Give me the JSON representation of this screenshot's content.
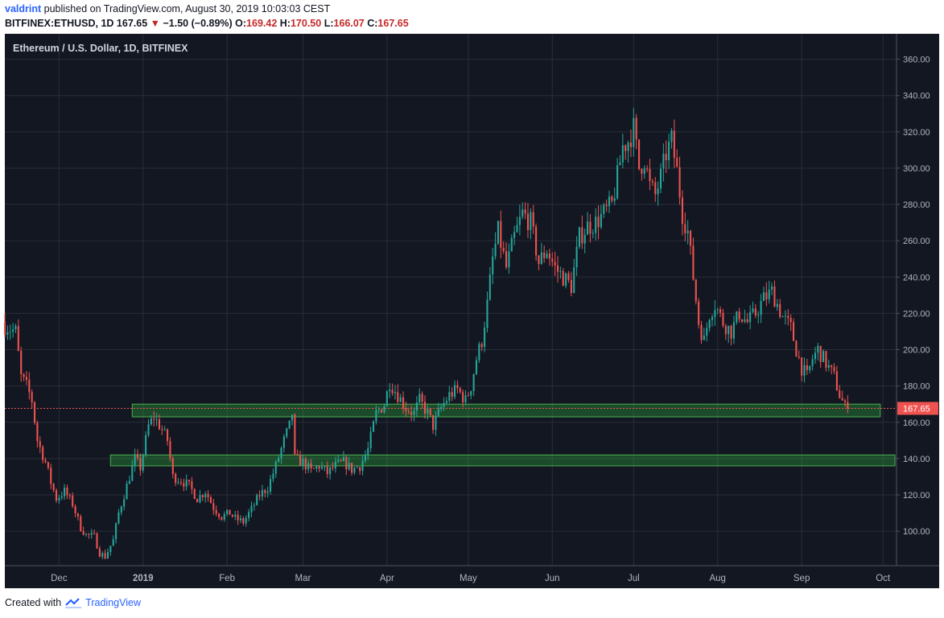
{
  "header": {
    "author": "valdrint",
    "published": "published on TradingView.com, August 30, 2019 10:03:03 CEST",
    "symbol": "BITFINEX:ETHUSD, 1D",
    "last": "167.65",
    "change": "−1.50 (−0.89%)",
    "o_label": "O:",
    "o": "169.42",
    "h_label": "H:",
    "h": "170.50",
    "l_label": "L:",
    "l": "166.07",
    "c_label": "C:",
    "c": "167.65"
  },
  "footer": {
    "created": "Created with",
    "brand": "TradingView"
  },
  "colors": {
    "up": "#26a69a",
    "down": "#ef5350",
    "zone": "#2e7d32",
    "background": "#131722",
    "grid": "#2a2e39",
    "text": "#b2b5be",
    "price_tag": "#ef5350"
  },
  "chart_data": {
    "type": "candlestick",
    "title": "Ethereum / U.S. Dollar, 1D, BITFINEX",
    "y_ticks": [
      100,
      120,
      140,
      160,
      180,
      200,
      220,
      240,
      260,
      280,
      300,
      320,
      340,
      360
    ],
    "y_tick_labels": [
      "100.00",
      "120.00",
      "140.00",
      "160.00",
      "180.00",
      "200.00",
      "220.00",
      "240.00",
      "260.00",
      "280.00",
      "300.00",
      "320.00",
      "340.00",
      "360.00"
    ],
    "ylim": [
      81,
      374
    ],
    "x_range": [
      "2018-11-11",
      "2019-10-06"
    ],
    "x_tick_labels": [
      {
        "date": "2018-12-01",
        "label": "Dec"
      },
      {
        "date": "2019-01-01",
        "label": "2019"
      },
      {
        "date": "2019-02-01",
        "label": "Feb"
      },
      {
        "date": "2019-03-01",
        "label": "Mar"
      },
      {
        "date": "2019-04-01",
        "label": "Apr"
      },
      {
        "date": "2019-05-01",
        "label": "May"
      },
      {
        "date": "2019-06-01",
        "label": "Jun"
      },
      {
        "date": "2019-07-01",
        "label": "Jul"
      },
      {
        "date": "2019-08-01",
        "label": "Aug"
      },
      {
        "date": "2019-09-01",
        "label": "Sep"
      },
      {
        "date": "2019-10-01",
        "label": "Oct"
      }
    ],
    "grid": true,
    "current_price": 167.65,
    "current_price_label": "167.65",
    "start_date": "2018-11-11",
    "close_path": [
      [
        0,
        213
      ],
      [
        4,
        210
      ],
      [
        6,
        185
      ],
      [
        8,
        180
      ],
      [
        10,
        172
      ],
      [
        12,
        150
      ],
      [
        15,
        138
      ],
      [
        17,
        127
      ],
      [
        19,
        118
      ],
      [
        22,
        122
      ],
      [
        25,
        115
      ],
      [
        28,
        102
      ],
      [
        30,
        98
      ],
      [
        33,
        97
      ],
      [
        35,
        88
      ],
      [
        37,
        86
      ],
      [
        40,
        95
      ],
      [
        42,
        110
      ],
      [
        45,
        125
      ],
      [
        48,
        140
      ],
      [
        50,
        135
      ],
      [
        53,
        158
      ],
      [
        55,
        163
      ],
      [
        58,
        156
      ],
      [
        60,
        150
      ],
      [
        62,
        130
      ],
      [
        65,
        128
      ],
      [
        68,
        125
      ],
      [
        71,
        118
      ],
      [
        74,
        122
      ],
      [
        77,
        113
      ],
      [
        80,
        108
      ],
      [
        83,
        110
      ],
      [
        85,
        107
      ],
      [
        88,
        105
      ],
      [
        91,
        112
      ],
      [
        94,
        120
      ],
      [
        97,
        124
      ],
      [
        100,
        136
      ],
      [
        103,
        150
      ],
      [
        105,
        158
      ],
      [
        106,
        165
      ],
      [
        107,
        140
      ],
      [
        110,
        138
      ],
      [
        113,
        133
      ],
      [
        116,
        136
      ],
      [
        119,
        132
      ],
      [
        122,
        136
      ],
      [
        125,
        138
      ],
      [
        128,
        134
      ],
      [
        131,
        136
      ],
      [
        134,
        145
      ],
      [
        137,
        165
      ],
      [
        140,
        170
      ],
      [
        142,
        182
      ],
      [
        145,
        175
      ],
      [
        148,
        168
      ],
      [
        151,
        165
      ],
      [
        153,
        172
      ],
      [
        156,
        165
      ],
      [
        158,
        158
      ],
      [
        161,
        168
      ],
      [
        164,
        175
      ],
      [
        167,
        178
      ],
      [
        170,
        172
      ],
      [
        172,
        180
      ],
      [
        174,
        195
      ],
      [
        176,
        205
      ],
      [
        178,
        225
      ],
      [
        180,
        250
      ],
      [
        182,
        265
      ],
      [
        185,
        245
      ],
      [
        188,
        262
      ],
      [
        191,
        275
      ],
      [
        194,
        270
      ],
      [
        197,
        248
      ],
      [
        200,
        255
      ],
      [
        203,
        245
      ],
      [
        206,
        240
      ],
      [
        209,
        235
      ],
      [
        212,
        262
      ],
      [
        215,
        268
      ],
      [
        218,
        270
      ],
      [
        221,
        275
      ],
      [
        224,
        280
      ],
      [
        226,
        295
      ],
      [
        228,
        312
      ],
      [
        230,
        315
      ],
      [
        232,
        322
      ],
      [
        234,
        300
      ],
      [
        236,
        305
      ],
      [
        238,
        290
      ],
      [
        240,
        285
      ],
      [
        242,
        295
      ],
      [
        244,
        308
      ],
      [
        246,
        315
      ],
      [
        248,
        298
      ],
      [
        250,
        275
      ],
      [
        252,
        265
      ],
      [
        254,
        240
      ],
      [
        256,
        215
      ],
      [
        258,
        205
      ],
      [
        260,
        220
      ],
      [
        262,
        225
      ],
      [
        265,
        215
      ],
      [
        268,
        210
      ],
      [
        271,
        220
      ],
      [
        274,
        215
      ],
      [
        277,
        220
      ],
      [
        280,
        228
      ],
      [
        283,
        232
      ],
      [
        285,
        225
      ],
      [
        287,
        218
      ],
      [
        290,
        212
      ],
      [
        292,
        200
      ],
      [
        294,
        190
      ],
      [
        296,
        185
      ],
      [
        298,
        195
      ],
      [
        300,
        200
      ],
      [
        302,
        195
      ],
      [
        304,
        190
      ],
      [
        306,
        185
      ],
      [
        308,
        175
      ],
      [
        310,
        168
      ],
      [
        311,
        167.65
      ]
    ],
    "support_zones": [
      {
        "low": 163,
        "high": 170,
        "start": "2018-12-28",
        "end": "2019-09-30"
      },
      {
        "low": 136,
        "high": 142,
        "start": "2018-12-20",
        "end": "2019-10-06"
      }
    ]
  }
}
